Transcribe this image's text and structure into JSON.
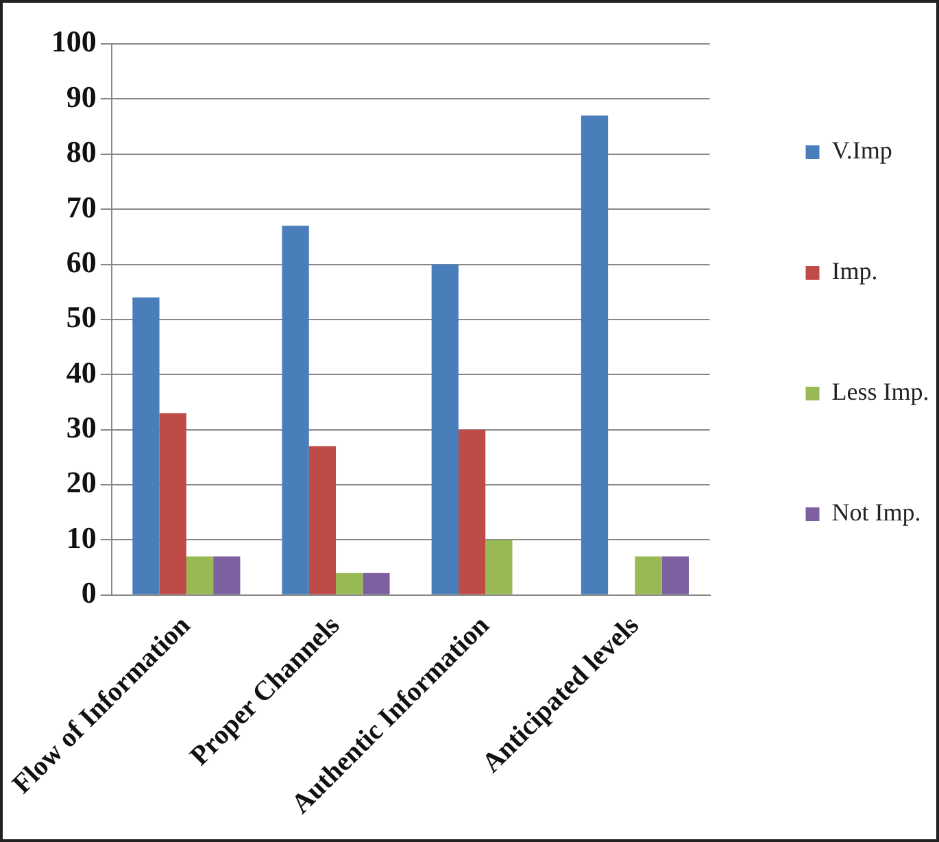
{
  "chart_data": {
    "type": "bar",
    "categories": [
      "Flow of Information",
      "Proper Channels",
      "Authentic Information",
      "Anticipated levels"
    ],
    "series": [
      {
        "name": "V.Imp",
        "color": "#4a7ebb",
        "values": [
          54,
          67,
          60,
          87
        ]
      },
      {
        "name": "Imp.",
        "color": "#be4b48",
        "values": [
          33,
          27,
          30,
          0
        ]
      },
      {
        "name": "Less Imp.",
        "color": "#98b954",
        "values": [
          7,
          4,
          10,
          7
        ]
      },
      {
        "name": "Not Imp.",
        "color": "#7d60a0",
        "values": [
          7,
          4,
          0,
          7
        ]
      }
    ],
    "ylim": [
      0,
      100
    ],
    "yticks": [
      0,
      10,
      20,
      30,
      40,
      50,
      60,
      70,
      80,
      90,
      100
    ],
    "grid": "y",
    "legend": "right"
  }
}
